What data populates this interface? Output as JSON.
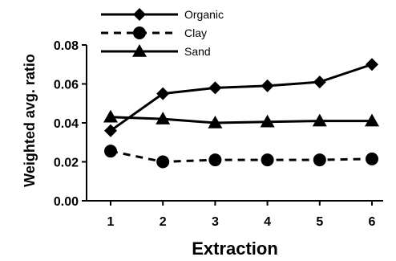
{
  "chart_data": {
    "type": "line",
    "xlabel": "Extraction",
    "ylabel": "Weighted avg. ratio",
    "categories": [
      "1",
      "2",
      "3",
      "4",
      "5",
      "6"
    ],
    "ylim": [
      0,
      0.08
    ],
    "yticks": [
      "0.00",
      "0.02",
      "0.04",
      "0.06",
      "0.08"
    ],
    "grid": false,
    "legend_position": "top-left",
    "series": [
      {
        "name": "Organic",
        "marker": "diamond",
        "line": "solid",
        "values": [
          0.036,
          0.055,
          0.058,
          0.059,
          0.061,
          0.07
        ]
      },
      {
        "name": "Clay",
        "marker": "circle",
        "line": "dashed",
        "values": [
          0.0255,
          0.02,
          0.021,
          0.021,
          0.021,
          0.0215
        ]
      },
      {
        "name": "Sand",
        "marker": "triangle",
        "line": "solid",
        "values": [
          0.043,
          0.042,
          0.04,
          0.0405,
          0.041,
          0.041
        ]
      }
    ],
    "colors": {
      "line": "#000000",
      "background": "#ffffff"
    }
  }
}
